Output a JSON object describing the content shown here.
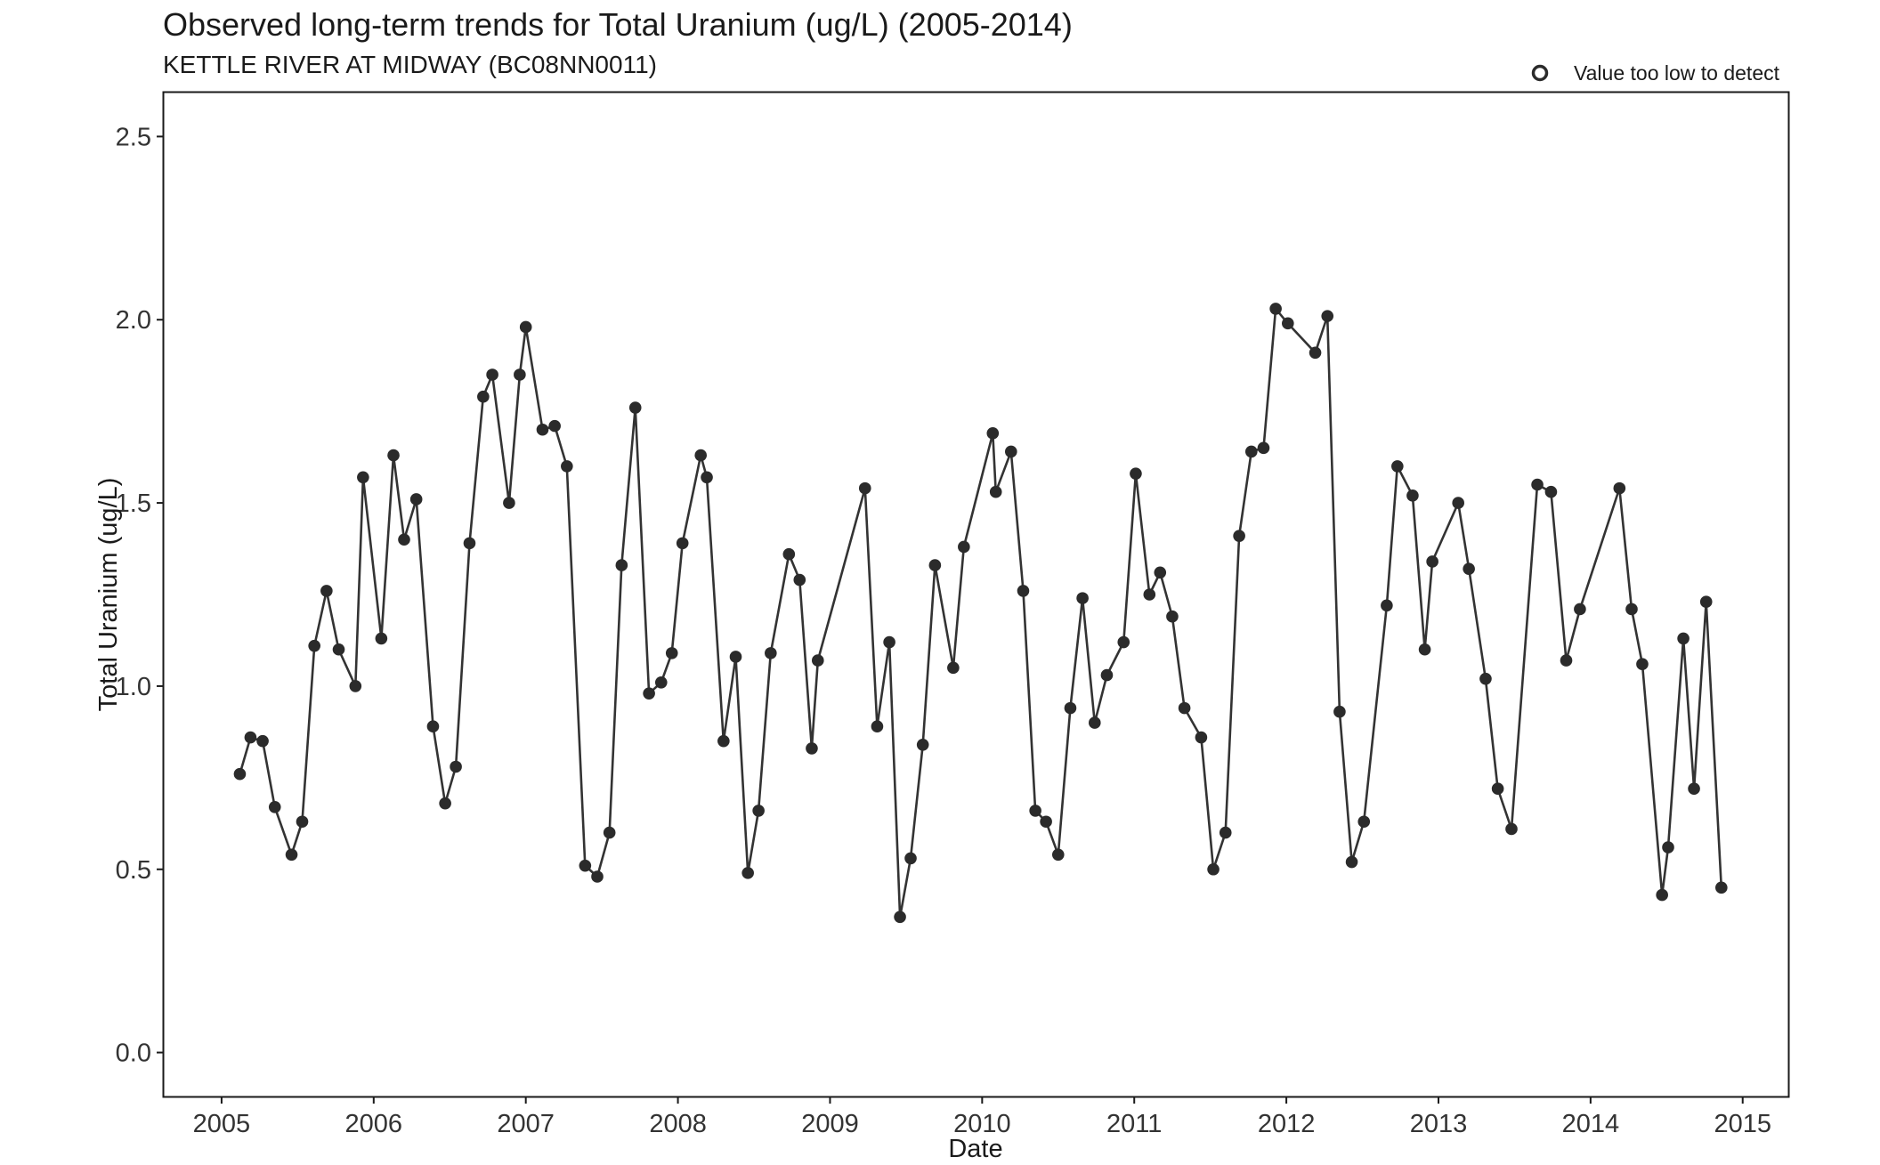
{
  "chart_data": {
    "type": "line",
    "title": "Observed long-term trends for Total Uranium (ug/L) (2005-2014)",
    "subtitle": "KETTLE RIVER AT MIDWAY (BC08NN0011)",
    "xlabel": "Date",
    "ylabel": "Total Uranium (ug/L)",
    "xlim": [
      2004.62,
      2015.3
    ],
    "ylim": [
      -0.12,
      2.62
    ],
    "x_ticks": [
      2005,
      2006,
      2007,
      2008,
      2009,
      2010,
      2011,
      2012,
      2013,
      2014,
      2015
    ],
    "x_tick_labels": [
      "2005",
      "2006",
      "2007",
      "2008",
      "2009",
      "2010",
      "2011",
      "2012",
      "2013",
      "2014",
      "2015"
    ],
    "y_ticks": [
      0.0,
      0.5,
      1.0,
      1.5,
      2.0,
      2.5
    ],
    "y_tick_labels": [
      "0.0",
      "0.5",
      "1.0",
      "1.5",
      "2.0",
      "2.5"
    ],
    "grid": false,
    "legend": {
      "placement": "top-right",
      "entries": [
        {
          "label": "Value too low to detect",
          "marker": "open-circle"
        }
      ]
    },
    "colors": {
      "line": "#333333",
      "point": "#2b2b2b",
      "axis": "#1a1a1a"
    },
    "series": [
      {
        "x": [
          2005.12,
          2005.19,
          2005.27,
          2005.35,
          2005.46,
          2005.53,
          2005.61,
          2005.69,
          2005.77,
          2005.88,
          2005.93,
          2006.05,
          2006.13,
          2006.2,
          2006.28,
          2006.39,
          2006.47,
          2006.54,
          2006.63,
          2006.72,
          2006.78,
          2006.89,
          2006.96,
          2007.0,
          2007.11,
          2007.19,
          2007.27,
          2007.39,
          2007.47,
          2007.55,
          2007.63,
          2007.72,
          2007.81,
          2007.89,
          2007.96,
          2008.03,
          2008.15,
          2008.19,
          2008.3,
          2008.38,
          2008.46,
          2008.53,
          2008.61,
          2008.73,
          2008.8,
          2008.88,
          2008.92,
          2009.23,
          2009.31,
          2009.39,
          2009.46,
          2009.53,
          2009.61,
          2009.69,
          2009.81,
          2009.88,
          2010.07,
          2010.09,
          2010.19,
          2010.27,
          2010.35,
          2010.42,
          2010.5,
          2010.58,
          2010.66,
          2010.74,
          2010.82,
          2010.93,
          2011.01,
          2011.1,
          2011.17,
          2011.25,
          2011.33,
          2011.44,
          2011.52,
          2011.6,
          2011.69,
          2011.77,
          2011.85,
          2011.93,
          2012.01,
          2012.19,
          2012.27,
          2012.35,
          2012.43,
          2012.51,
          2012.66,
          2012.73,
          2012.83,
          2012.91,
          2012.96,
          2013.13,
          2013.2,
          2013.31,
          2013.39,
          2013.48,
          2013.65,
          2013.74,
          2013.84,
          2013.93,
          2014.19,
          2014.27,
          2014.34,
          2014.47,
          2014.51,
          2014.61,
          2014.68,
          2014.76,
          2014.86
        ],
        "y": [
          0.76,
          0.86,
          0.85,
          0.67,
          0.54,
          0.63,
          1.11,
          1.26,
          1.1,
          1.0,
          1.57,
          1.13,
          1.63,
          1.4,
          1.51,
          0.89,
          0.68,
          0.78,
          1.39,
          1.79,
          1.85,
          1.5,
          1.85,
          1.98,
          1.7,
          1.71,
          1.6,
          0.51,
          0.48,
          0.6,
          1.33,
          1.76,
          0.98,
          1.01,
          1.09,
          1.39,
          1.63,
          1.57,
          0.85,
          1.08,
          0.49,
          0.66,
          1.09,
          1.36,
          1.29,
          0.83,
          1.07,
          1.54,
          0.89,
          1.12,
          0.37,
          0.53,
          0.84,
          1.33,
          1.05,
          1.38,
          1.69,
          1.53,
          1.64,
          1.26,
          0.66,
          0.63,
          0.54,
          0.94,
          1.24,
          0.9,
          1.03,
          1.12,
          1.58,
          1.25,
          1.31,
          1.19,
          0.94,
          0.86,
          0.5,
          0.6,
          1.41,
          1.64,
          1.65,
          2.03,
          1.99,
          1.91,
          2.01,
          0.93,
          0.52,
          0.63,
          1.22,
          1.6,
          1.52,
          1.1,
          1.34,
          1.5,
          1.32,
          1.02,
          0.72,
          0.61,
          1.55,
          1.53,
          1.07,
          1.21,
          1.54,
          1.21,
          1.06,
          0.43,
          0.56,
          1.13,
          0.72,
          1.23,
          0.45
        ]
      }
    ]
  }
}
